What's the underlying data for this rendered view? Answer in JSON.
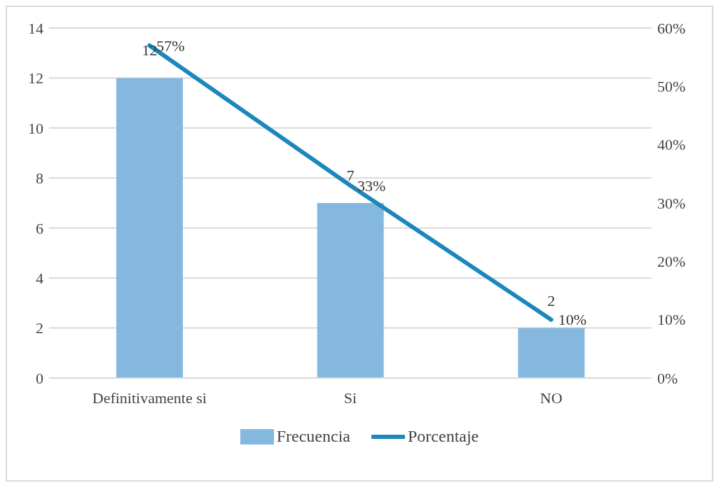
{
  "chart_data": {
    "type": "bar",
    "categories": [
      "Definitivamente si",
      "Si",
      "NO"
    ],
    "series": [
      {
        "name": "Frecuencia",
        "color": "#85b8df",
        "values": [
          12,
          7,
          2
        ],
        "value_labels": [
          "12",
          "7",
          "2"
        ]
      },
      {
        "name": "Porcentaje",
        "type": "line",
        "axis": "y2",
        "color": "#1b87bd",
        "values": [
          57,
          33,
          10
        ],
        "value_labels": [
          "57%",
          "33%",
          "10%"
        ]
      }
    ],
    "ylim": [
      0,
      14
    ],
    "yticks": [
      0,
      2,
      4,
      6,
      8,
      10,
      12,
      14
    ],
    "y2lim": [
      0,
      60
    ],
    "y2ticks": [
      {
        "value": 0,
        "label": "0%"
      },
      {
        "value": 10,
        "label": "10%"
      },
      {
        "value": 20,
        "label": "20%"
      },
      {
        "value": 30,
        "label": "30%"
      },
      {
        "value": 40,
        "label": "40%"
      },
      {
        "value": 50,
        "label": "50%"
      },
      {
        "value": 60,
        "label": "60%"
      }
    ],
    "grid": "y",
    "legend": "bottom"
  }
}
